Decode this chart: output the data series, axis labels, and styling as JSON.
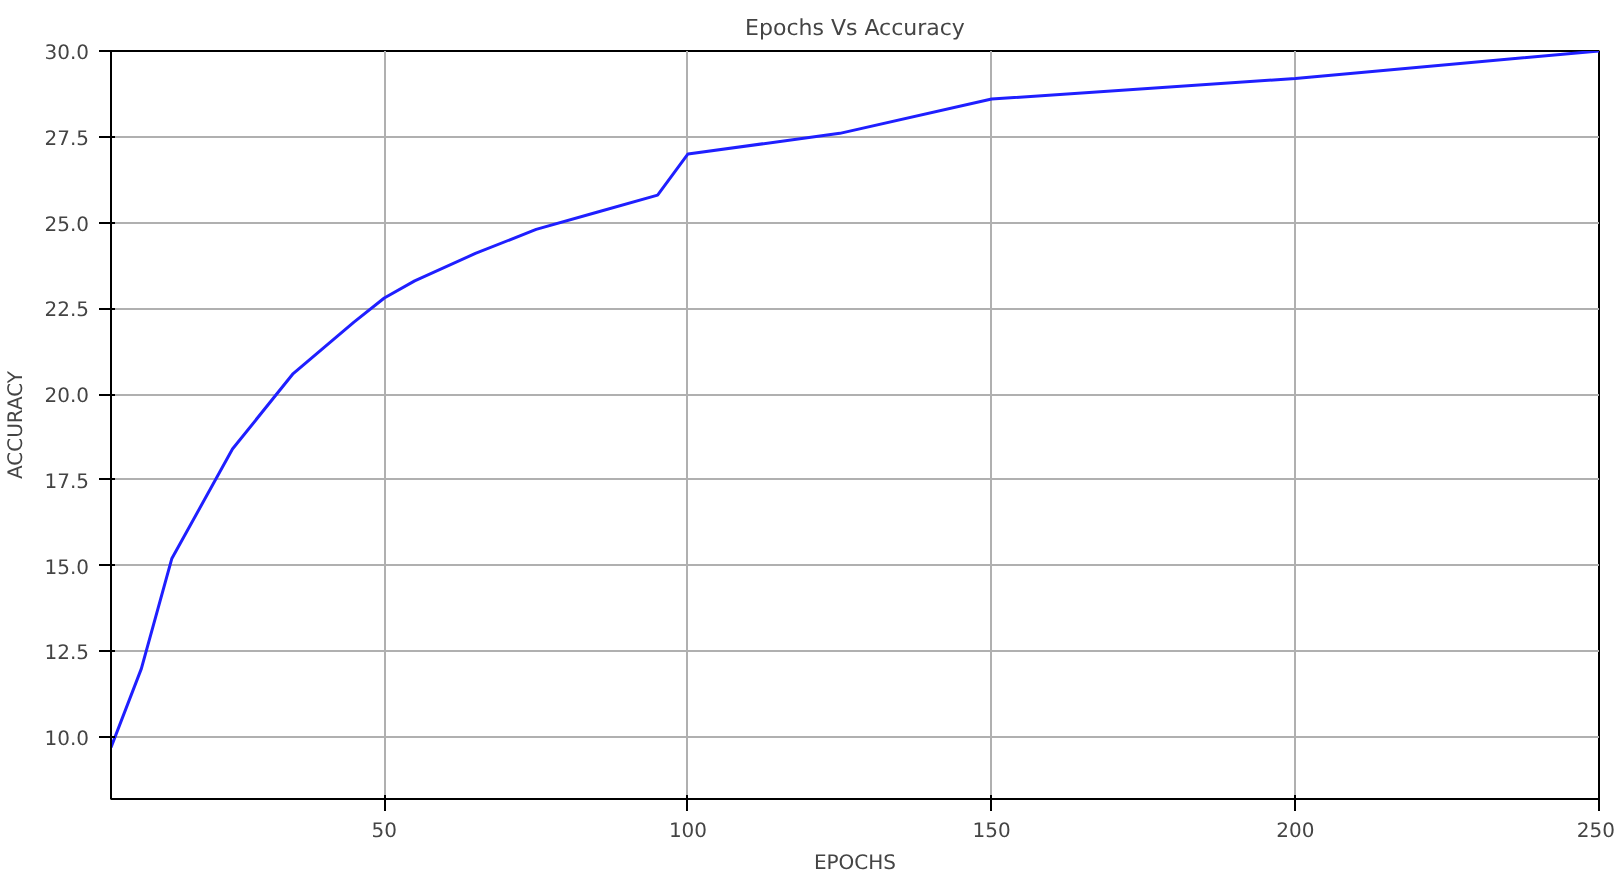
{
  "chart_data": {
    "type": "line",
    "title": "Epochs Vs Accuracy",
    "xlabel": "EPOCHS",
    "ylabel": "ACCURACY",
    "x": [
      5,
      10,
      15,
      25,
      35,
      45,
      50,
      55,
      65,
      75,
      85,
      95,
      100,
      125,
      150,
      200,
      250
    ],
    "series": [
      {
        "color": "#1f1fff",
        "values": [
          9.7,
          12.0,
          15.2,
          18.4,
          20.6,
          22.1,
          22.8,
          23.3,
          24.1,
          24.8,
          25.3,
          25.8,
          27.0,
          27.6,
          28.6,
          29.2,
          30.0
        ]
      }
    ],
    "xlim": [
      5,
      250
    ],
    "ylim": [
      8.2,
      30
    ],
    "xticks": [
      50,
      100,
      150,
      200,
      250
    ],
    "yticks": [
      {
        "value": 10,
        "label": "10.0"
      },
      12.5,
      {
        "value": 15,
        "label": "15.0"
      },
      17.5,
      {
        "value": 20,
        "label": "20.0"
      },
      22.5,
      {
        "value": 25,
        "label": "25.0"
      },
      27.5,
      {
        "value": 30,
        "label": "30.0"
      }
    ],
    "grid": true,
    "marker": "none",
    "line_style": "solid"
  }
}
